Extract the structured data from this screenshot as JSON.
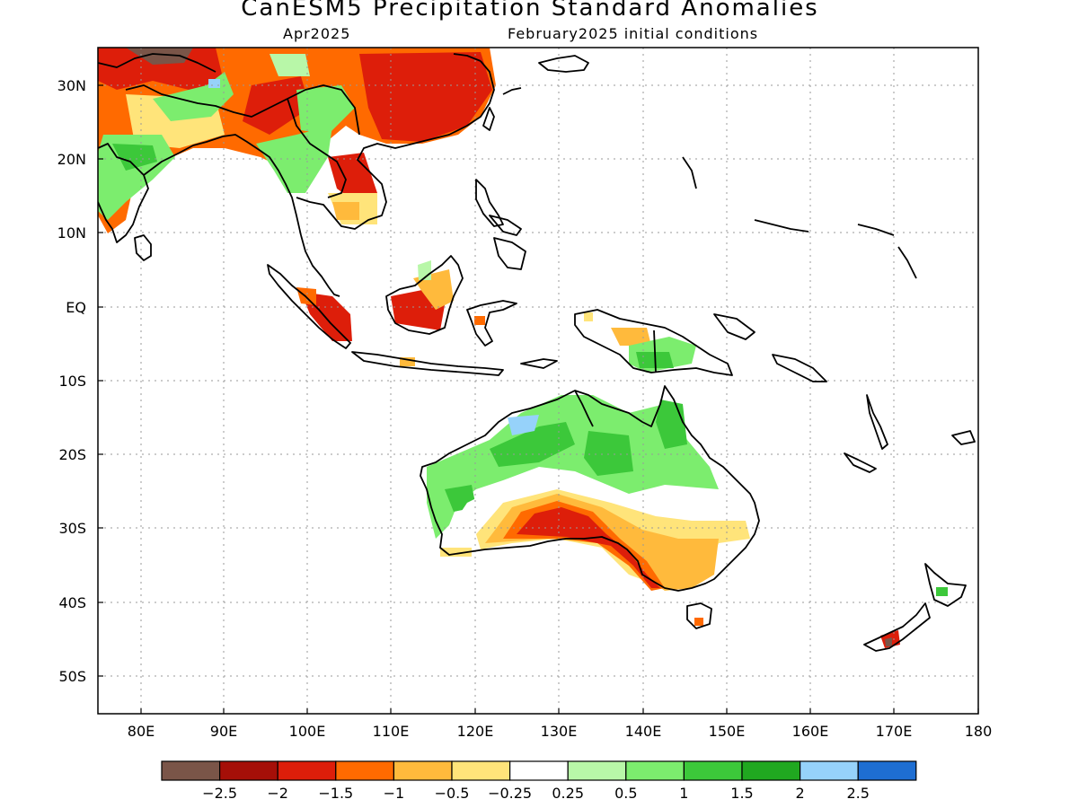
{
  "title": "CanESM5 Precipitation Standard Anomalies",
  "subtitle_left": "Apr2025",
  "subtitle_right": "February2025 initial conditions",
  "lat_labels": [
    "30N",
    "20N",
    "10N",
    "EQ",
    "10S",
    "20S",
    "30S",
    "40S",
    "50S"
  ],
  "lon_labels": [
    "80E",
    "90E",
    "100E",
    "110E",
    "120E",
    "130E",
    "140E",
    "150E",
    "160E",
    "170E",
    "180"
  ],
  "colorbar": {
    "colors": [
      "#7a5548",
      "#a50f08",
      "#dd1e0a",
      "#ff6a00",
      "#ffba3c",
      "#ffe47a",
      "#ffffff",
      "#b8f7a8",
      "#7ced6e",
      "#3cc83a",
      "#20a820",
      "#96d2fa",
      "#1e6ed2"
    ],
    "labels": [
      "-2.5",
      "-2",
      "-1.5",
      "-1",
      "-0.5",
      "-0.25",
      "0.25",
      "0.5",
      "1",
      "1.5",
      "2",
      "2.5"
    ]
  },
  "colors": {
    "coast": "#000000",
    "grid": "#999999"
  }
}
